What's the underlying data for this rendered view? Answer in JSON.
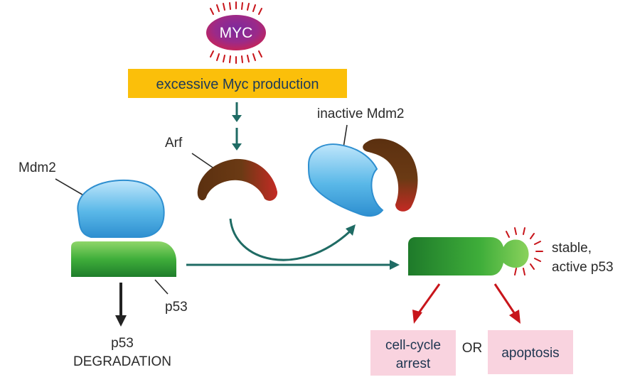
{
  "myc": {
    "label": "MYC"
  },
  "banner": {
    "text": "excessive Myc production",
    "color": "#fbbf0a"
  },
  "labels": {
    "arf": "Arf",
    "mdm2": "Mdm2",
    "inactive_mdm2": "inactive Mdm2",
    "p53": "p53",
    "degradation_line1": "p53",
    "degradation_line2": "DEGRADATION",
    "stable_line1": "stable,",
    "stable_line2": "active p53"
  },
  "outcomes": {
    "cell_cycle_line1": "cell-cycle",
    "cell_cycle_line2": "arrest",
    "or": "OR",
    "apoptosis": "apoptosis",
    "box_color": "#f9d3df"
  },
  "colors": {
    "arrow_teal": "#1f6b64",
    "arrow_red": "#c8151b",
    "arrow_black": "#222222",
    "p53_green": "#3fae3a",
    "mdm2_blue": "#5ab8e8",
    "arf_brown": "#6b3a14",
    "arf_red": "#c42a24"
  }
}
